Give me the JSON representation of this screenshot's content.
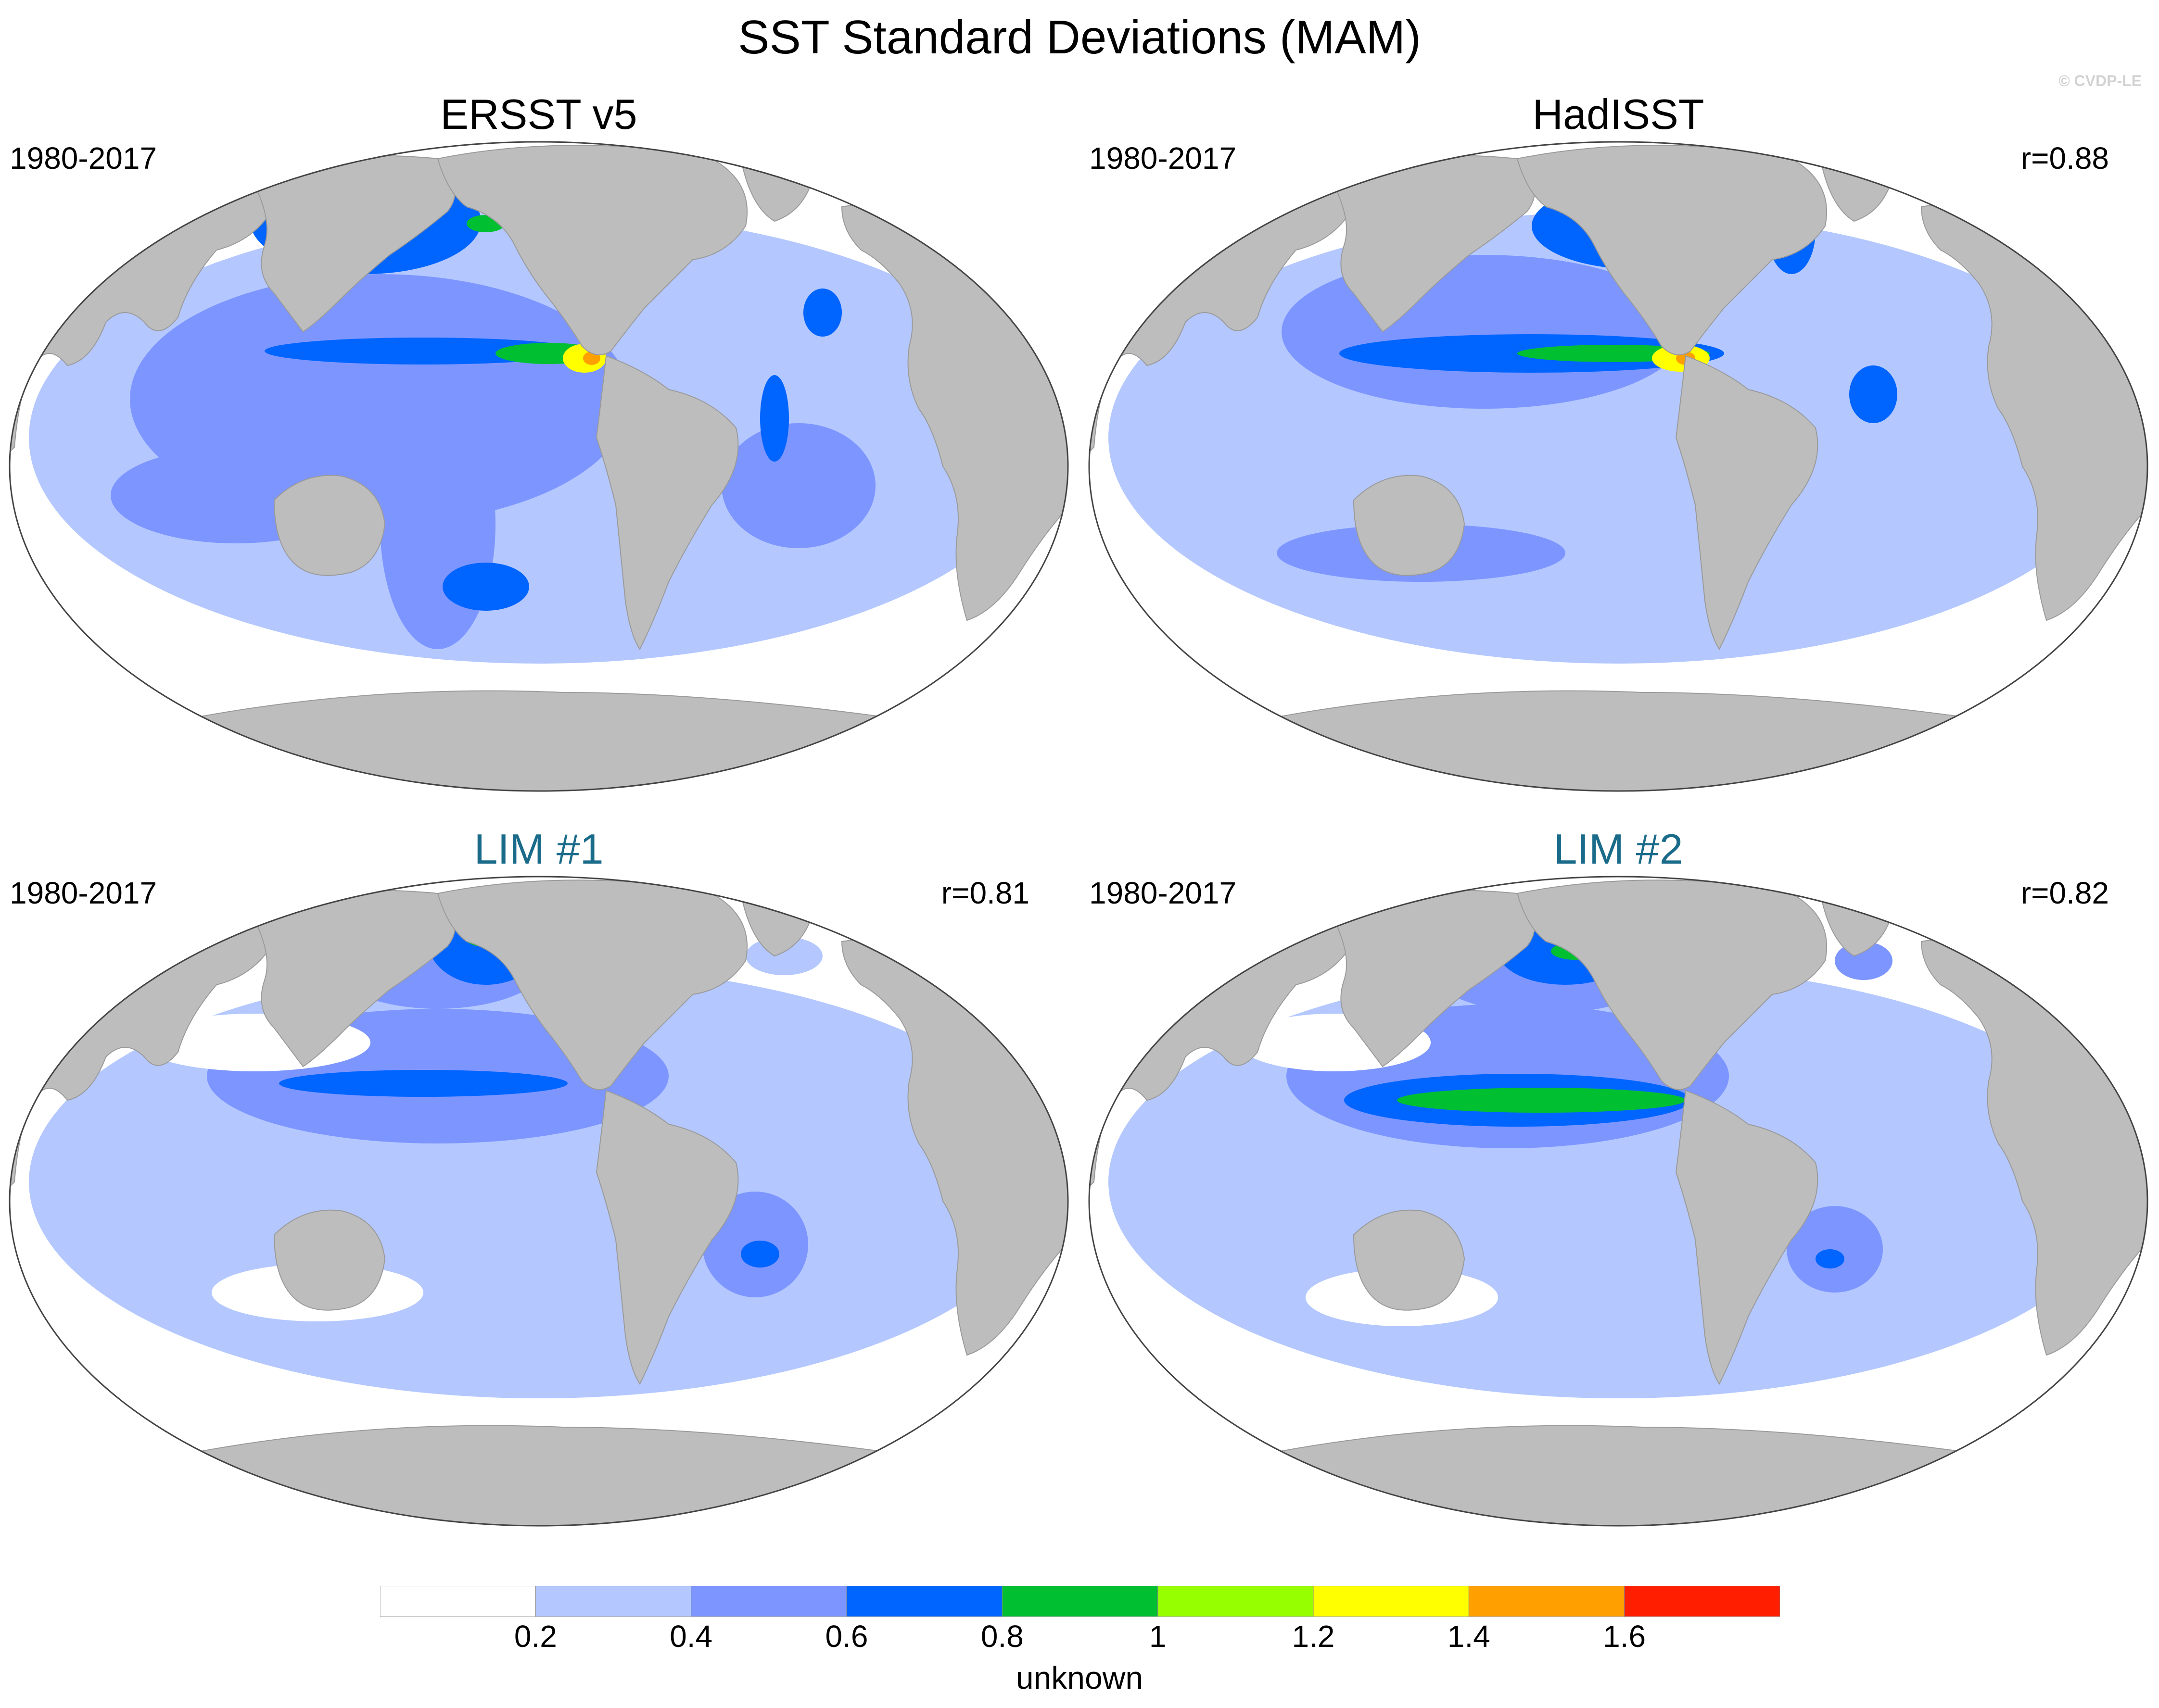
{
  "title": "SST Standard Deviations (MAM)",
  "credit": "© CVDP-LE",
  "colors": {
    "land": "#bdbdbd",
    "missing": "#ffffff",
    "teal_title": "#1a6b8a"
  },
  "panels": [
    {
      "title": "ERSST v5",
      "period": "1980-2017",
      "corr": "",
      "title_color": "black"
    },
    {
      "title": "HadISST",
      "period": "1980-2017",
      "corr": "r=0.88",
      "title_color": "black"
    },
    {
      "title": "LIM #1",
      "period": "1980-2017",
      "corr": "r=0.81",
      "title_color": "teal"
    },
    {
      "title": "LIM #2",
      "period": "1980-2017",
      "corr": "r=0.82",
      "title_color": "teal"
    }
  ],
  "colorbar": {
    "label": "unknown",
    "levels": [
      "0.2",
      "0.4",
      "0.6",
      "0.8",
      "1",
      "1.2",
      "1.4",
      "1.6"
    ],
    "colors": [
      "#ffffff",
      "#b4c8ff",
      "#7d96ff",
      "#0064ff",
      "#00c032",
      "#96ff00",
      "#ffff00",
      "#ffa000",
      "#ff1e00"
    ]
  },
  "chart_data": {
    "type": "heatmap",
    "title": "SST Standard Deviations (MAM)",
    "variable": "SST standard deviation",
    "season": "MAM",
    "period": "1980-2017",
    "contour_levels": [
      0.2,
      0.4,
      0.6,
      0.8,
      1.0,
      1.2,
      1.4,
      1.6
    ],
    "colorbar_label": "unknown",
    "panels": [
      {
        "name": "ERSST v5",
        "r": null
      },
      {
        "name": "HadISST",
        "r": 0.88
      },
      {
        "name": "LIM #1",
        "r": 0.81
      },
      {
        "name": "LIM #2",
        "r": 0.82
      }
    ]
  }
}
